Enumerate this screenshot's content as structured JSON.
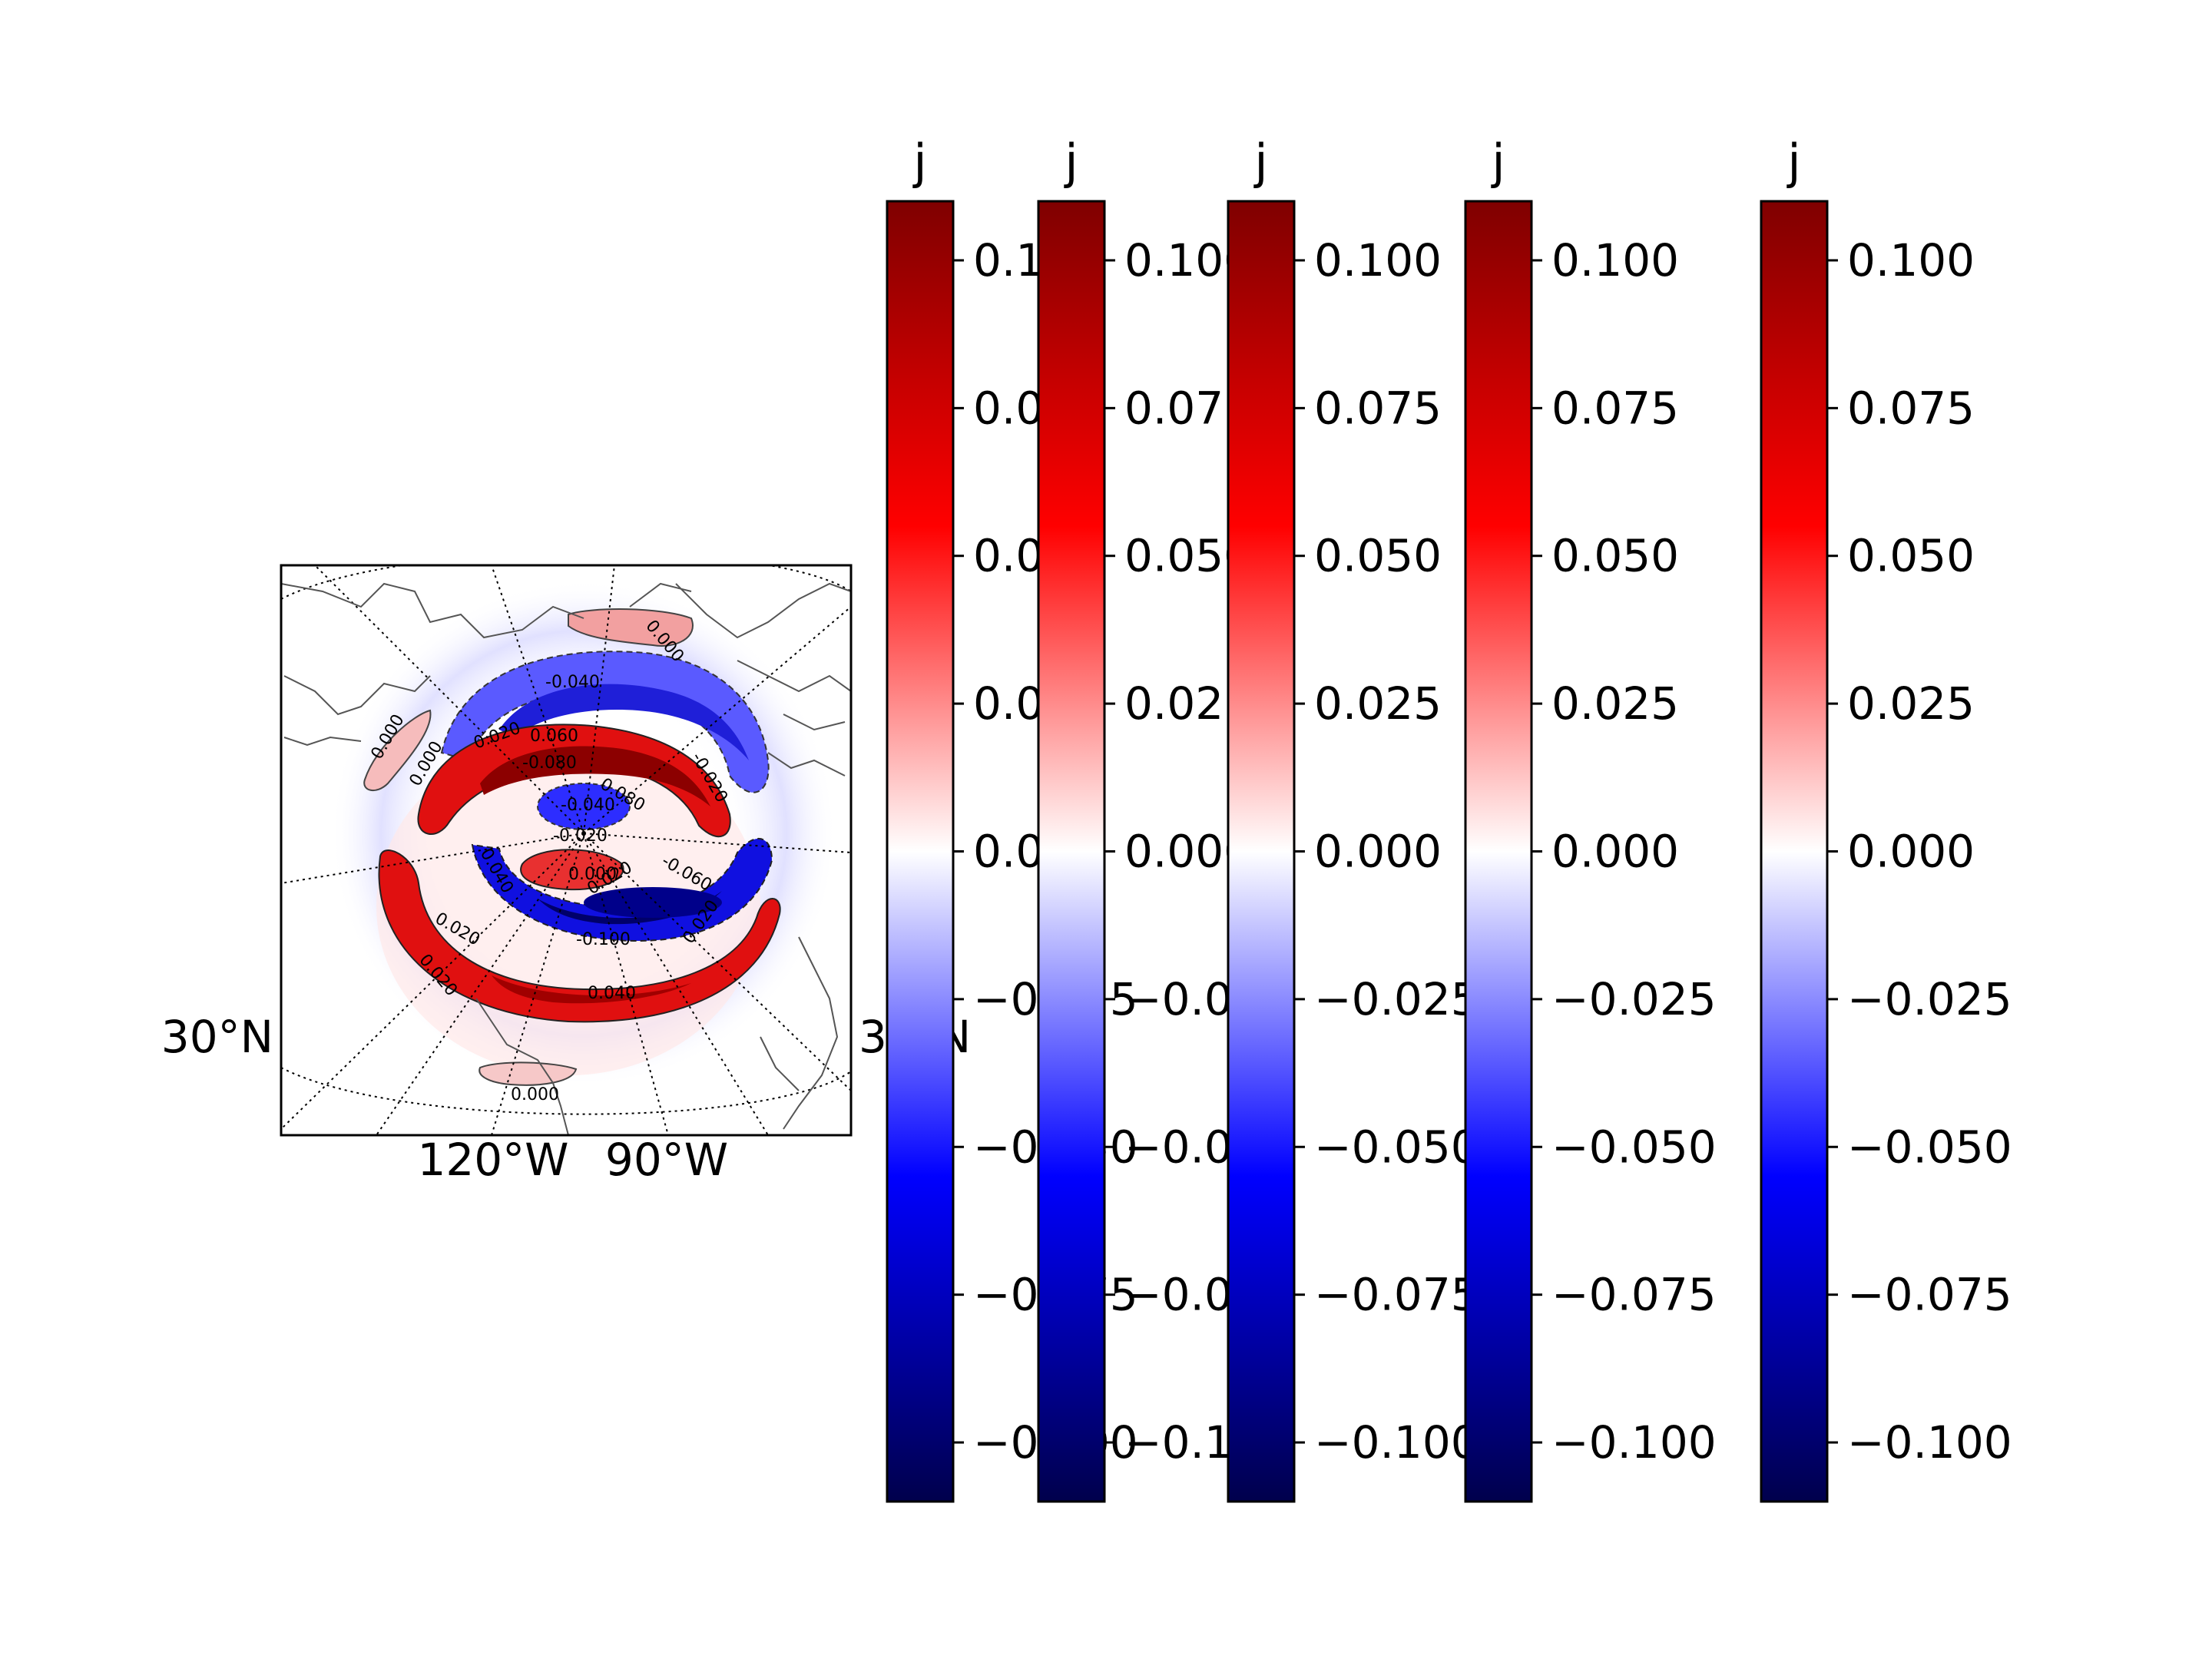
{
  "chart_data": [
    {
      "type": "heatmap",
      "subtype": "polar-stereographic map with filled contours and contour lines",
      "colormap": "seismic",
      "longitude_labels": [
        "120°W",
        "90°W"
      ],
      "latitude_labels": [
        "30°N",
        "30°N"
      ],
      "contour_levels": [
        -0.1,
        -0.08,
        -0.06,
        -0.04,
        -0.02,
        0.0,
        0.02,
        0.04,
        0.06,
        0.08,
        0.1
      ],
      "contour_labels": [
        "-0.040",
        "-0.020",
        "0.020",
        "0.060",
        "-0.080",
        "0.080",
        "0.000",
        "0.000",
        "0.000",
        "-0.040",
        "-0.020",
        "0.040",
        "0.020",
        "-0.060",
        "-0.100",
        "0.020",
        "0.020",
        "0.040",
        "0.000",
        "0.000",
        "0.020"
      ],
      "grid": true,
      "pattern": "spiral of alternating positive (red) and negative (blue) bands around the pole"
    },
    {
      "type": "colorbar",
      "count": 5,
      "title": "j",
      "vmin": -0.11,
      "vmax": 0.11,
      "ticks": [
        0.1,
        0.075,
        0.05,
        0.025,
        0.0,
        -0.025,
        -0.05,
        -0.075,
        -0.1
      ],
      "tick_labels": [
        "0.100",
        "0.075",
        "0.050",
        "0.025",
        "0.000",
        "−0.025",
        "−0.050",
        "−0.075",
        "−0.100"
      ],
      "colors": {
        "low": "#00004c",
        "mid_low": "#0000ff",
        "center": "#ffffff",
        "mid_high": "#ff0000",
        "high": "#7f0000"
      }
    }
  ]
}
